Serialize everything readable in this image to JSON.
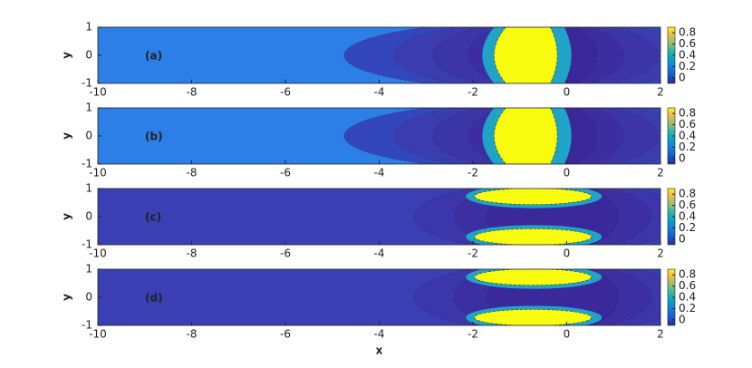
{
  "chart_data": [
    {
      "type": "contour",
      "label": "(a)",
      "ylabel": "y",
      "xlim": [
        -10,
        2
      ],
      "ylim": [
        -1,
        1
      ],
      "xticks": [
        -10,
        -8,
        -6,
        -4,
        -2,
        0,
        2
      ],
      "yticks": [
        -1,
        0,
        1
      ],
      "clim": [
        -0.1,
        0.9
      ],
      "cticks": [
        0,
        0.2,
        0.4,
        0.6,
        0.8
      ],
      "pattern": "crescent",
      "background": "#2b7fe6"
    },
    {
      "type": "contour",
      "label": "(b)",
      "ylabel": "y",
      "xlim": [
        -10,
        2
      ],
      "ylim": [
        -1,
        1
      ],
      "xticks": [
        -10,
        -8,
        -6,
        -4,
        -2,
        0,
        2
      ],
      "yticks": [
        -1,
        0,
        1
      ],
      "clim": [
        -0.1,
        0.9
      ],
      "cticks": [
        0,
        0.2,
        0.4,
        0.6,
        0.8
      ],
      "pattern": "crescent",
      "background": "#2b7fe6"
    },
    {
      "type": "contour",
      "label": "(c)",
      "ylabel": "y",
      "xlim": [
        -10,
        2
      ],
      "ylim": [
        -1,
        1
      ],
      "xticks": [
        -10,
        -8,
        -6,
        -4,
        -2,
        0,
        2
      ],
      "yticks": [
        -1,
        0,
        1
      ],
      "clim": [
        -0.1,
        0.9
      ],
      "cticks": [
        0,
        0.2,
        0.4,
        0.6,
        0.8
      ],
      "pattern": "split",
      "background": "#3a40b4"
    },
    {
      "type": "contour",
      "label": "(d)",
      "ylabel": "y",
      "xlabel": "x",
      "xlim": [
        -10,
        2
      ],
      "ylim": [
        -1,
        1
      ],
      "xticks": [
        -10,
        -8,
        -6,
        -4,
        -2,
        0,
        2
      ],
      "yticks": [
        -1,
        0,
        1
      ],
      "clim": [
        -0.1,
        0.9
      ],
      "cticks": [
        0,
        0.2,
        0.4,
        0.6,
        0.8
      ],
      "pattern": "split",
      "background": "#3a40b4"
    }
  ]
}
